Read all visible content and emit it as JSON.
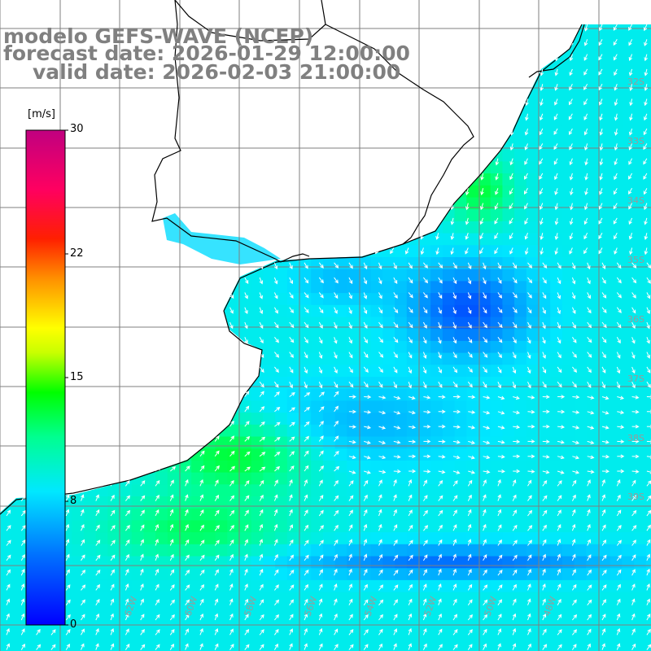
{
  "title": {
    "line1": "modelo GEFS-WAVE (NCEP)",
    "line2": "forecast date: 2026-01-29 12:00:00",
    "line3": "valid date: 2026-02-03 21:00:00"
  },
  "colorbar": {
    "unit": "[m/s]",
    "ticks": [
      "30",
      "22",
      "15",
      "8",
      "0"
    ],
    "tick_values": [
      30,
      22,
      15,
      8,
      0
    ],
    "min": 0,
    "max": 30,
    "colors": [
      "#0000ff",
      "#00a0ff",
      "#00e8ff",
      "#00ff80",
      "#00ff00",
      "#aaff00",
      "#ffff00",
      "#ffa000",
      "#ff3000",
      "#ff0000",
      "#ff0080",
      "#b00080"
    ]
  },
  "lat_labels": [
    "32S",
    "33S",
    "34S",
    "35S",
    "36S",
    "37S",
    "38S",
    "39S"
  ],
  "lon_labels": [
    "62W",
    "60W",
    "58W",
    "56W",
    "54W",
    "52W",
    "50W",
    "48W"
  ],
  "colors": {
    "land": "#ffffff",
    "grid": "#7f7f7f",
    "coast": "#000000",
    "arrows": "#ffffff",
    "title": "#808080"
  },
  "map": {
    "field": "wind speed",
    "wind_max_value": 13,
    "wind_min_value": 2
  }
}
